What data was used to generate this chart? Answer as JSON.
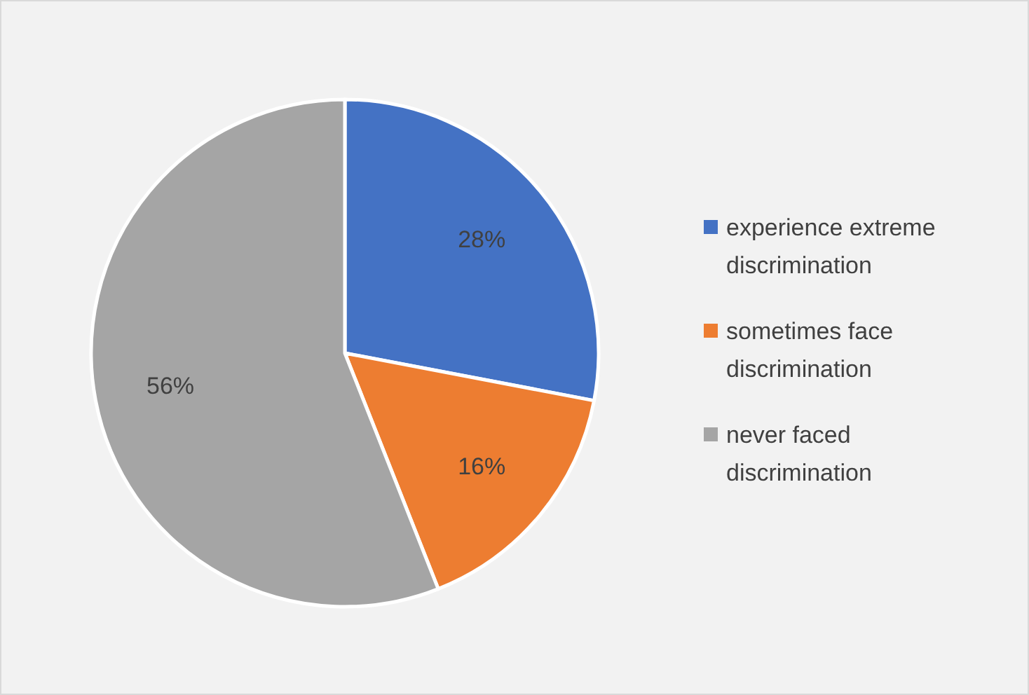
{
  "chart_data": {
    "type": "pie",
    "categories": [
      "experience extreme discrimination",
      "sometimes face discrimination",
      "never faced discrimination"
    ],
    "values": [
      28,
      16,
      56
    ],
    "colors": [
      "#4472c4",
      "#ed7d31",
      "#a5a5a5"
    ],
    "value_labels": [
      "28%",
      "16%",
      "56%"
    ],
    "legend": "right"
  }
}
